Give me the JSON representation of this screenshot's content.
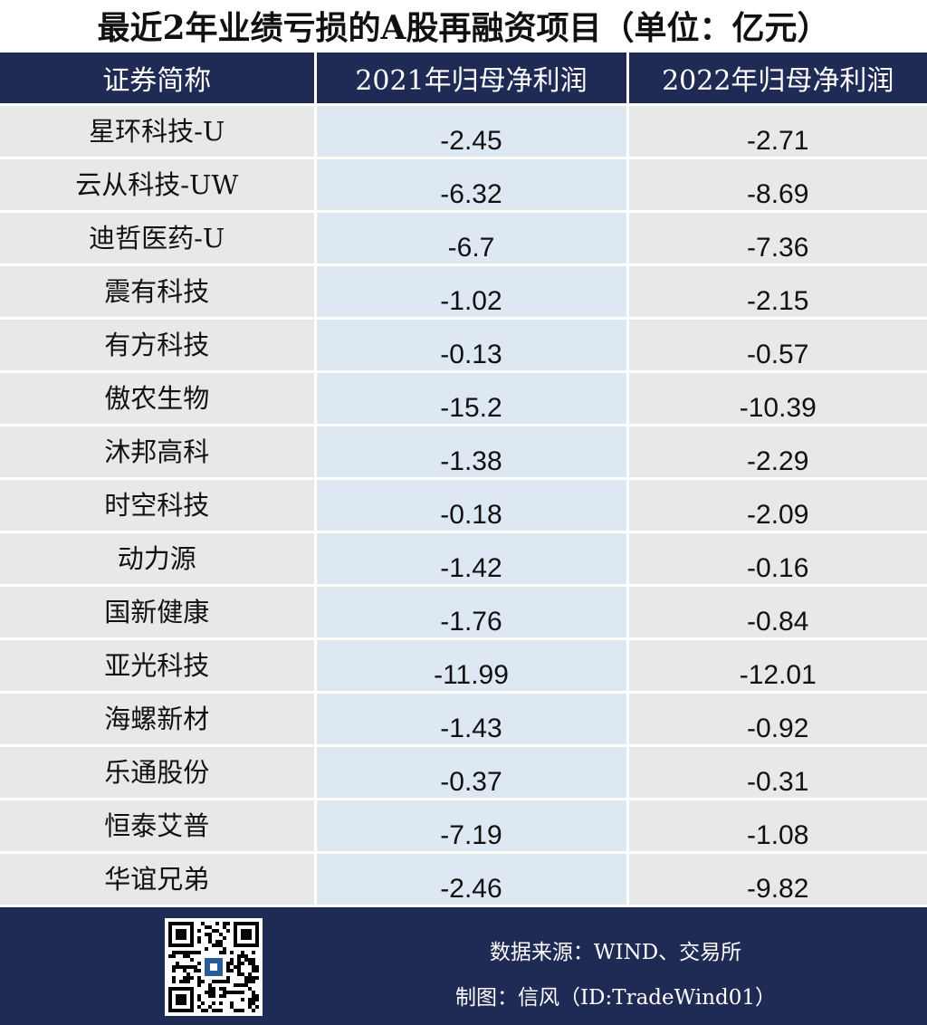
{
  "title": "最近2年业绩亏损的A股再融资项目（单位：亿元）",
  "columns": [
    "证券简称",
    "2021年归母净利润",
    "2022年归母净利润"
  ],
  "rows": [
    {
      "name": "星环科技-U",
      "np2021": "-2.45",
      "np2022": "-2.71"
    },
    {
      "name": "云从科技-UW",
      "np2021": "-6.32",
      "np2022": "-8.69"
    },
    {
      "name": "迪哲医药-U",
      "np2021": "-6.7",
      "np2022": "-7.36"
    },
    {
      "name": "震有科技",
      "np2021": "-1.02",
      "np2022": "-2.15"
    },
    {
      "name": "有方科技",
      "np2021": "-0.13",
      "np2022": "-0.57"
    },
    {
      "name": "傲农生物",
      "np2021": "-15.2",
      "np2022": "-10.39"
    },
    {
      "name": "沐邦高科",
      "np2021": "-1.38",
      "np2022": "-2.29"
    },
    {
      "name": "时空科技",
      "np2021": "-0.18",
      "np2022": "-2.09"
    },
    {
      "name": "动力源",
      "np2021": "-1.42",
      "np2022": "-0.16"
    },
    {
      "name": "国新健康",
      "np2021": "-1.76",
      "np2022": "-0.84"
    },
    {
      "name": "亚光科技",
      "np2021": "-11.99",
      "np2022": "-12.01"
    },
    {
      "name": "海螺新材",
      "np2021": "-1.43",
      "np2022": "-0.92"
    },
    {
      "name": "乐通股份",
      "np2021": "-0.37",
      "np2022": "-0.31"
    },
    {
      "name": "恒泰艾普",
      "np2021": "-7.19",
      "np2022": "-1.08"
    },
    {
      "name": "华谊兄弟",
      "np2021": "-2.46",
      "np2022": "-9.82"
    }
  ],
  "footer": {
    "source": "数据来源：WIND、交易所",
    "maker": "制图：信风（ID:TradeWind01）"
  },
  "colors": {
    "header_bg": "#1f2a55",
    "name_cell_bg": "#e8e8e8",
    "col2021_bg": "#dde8f2",
    "col2022_bg": "#e8e8e8"
  }
}
